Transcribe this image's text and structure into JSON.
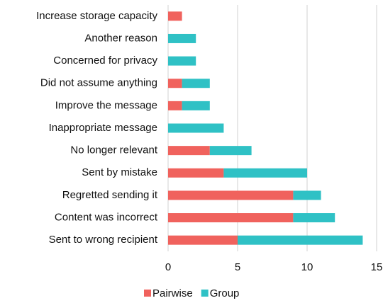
{
  "chart_data": {
    "type": "stacked_barh",
    "categories": [
      "Increase storage capacity",
      "Another reason",
      "Concerned for privacy",
      "Did not assume anything",
      "Improve the message",
      "Inappropriate message",
      "No longer relevant",
      "Sent by mistake",
      "Regretted sending it",
      "Content was incorrect",
      "Sent to wrong recipient"
    ],
    "series": [
      {
        "name": "Pairwise",
        "color": "#f0625d",
        "values": [
          1,
          0,
          0,
          1,
          1,
          0,
          3,
          4,
          9,
          9,
          5
        ]
      },
      {
        "name": "Group",
        "color": "#2fc1c5",
        "values": [
          0,
          2,
          2,
          2,
          2,
          4,
          3,
          6,
          2,
          3,
          9
        ]
      }
    ],
    "xlim": [
      0,
      15
    ],
    "xticks": [
      0,
      5,
      10,
      15
    ],
    "grid": true,
    "legend": "bottom"
  }
}
